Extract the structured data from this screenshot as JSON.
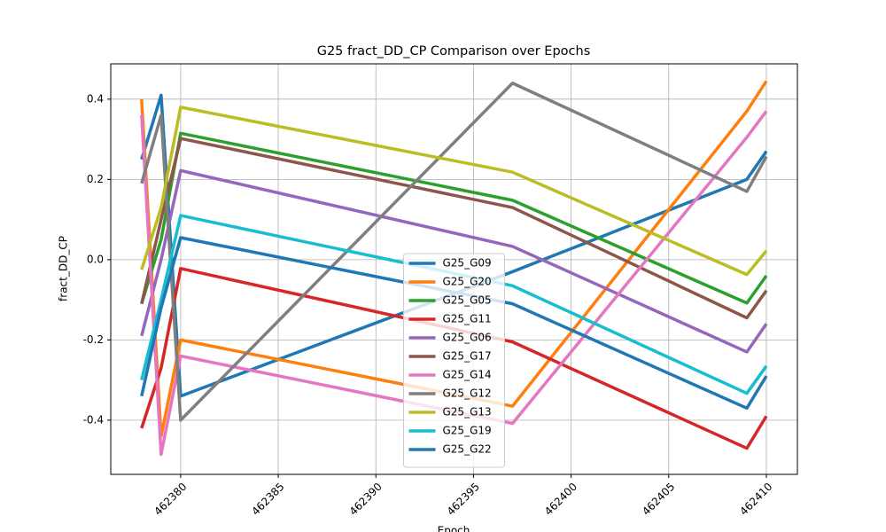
{
  "chart_data": {
    "type": "line",
    "title": "G25 fract_DD_CP Comparison over Epochs",
    "xlabel": "Epoch",
    "ylabel": "fract_DD_CP",
    "x": [
      462378,
      462379,
      462380,
      462397,
      462409,
      462410
    ],
    "series": [
      {
        "name": "G25_G09",
        "color": "#1f77b4",
        "values": [
          0.25,
          0.41,
          -0.34,
          -0.03,
          0.2,
          0.27
        ]
      },
      {
        "name": "G25_G20",
        "color": "#ff7f0e",
        "values": [
          0.4,
          -0.44,
          -0.2,
          -0.365,
          0.37,
          0.445
        ]
      },
      {
        "name": "G25_G05",
        "color": "#2ca02c",
        "values": [
          -0.11,
          0.05,
          0.315,
          0.148,
          -0.108,
          -0.04
        ]
      },
      {
        "name": "G25_G11",
        "color": "#d62728",
        "values": [
          -0.42,
          -0.27,
          -0.022,
          -0.205,
          -0.47,
          -0.39
        ]
      },
      {
        "name": "G25_G06",
        "color": "#9467bd",
        "values": [
          -0.19,
          0.0,
          0.222,
          0.033,
          -0.23,
          -0.16
        ]
      },
      {
        "name": "G25_G17",
        "color": "#8c564b",
        "values": [
          -0.11,
          0.1,
          0.302,
          0.13,
          -0.145,
          -0.077
        ]
      },
      {
        "name": "G25_G14",
        "color": "#e377c2",
        "values": [
          0.36,
          -0.485,
          -0.24,
          -0.408,
          0.305,
          0.37
        ]
      },
      {
        "name": "G25_G12",
        "color": "#7f7f7f",
        "values": [
          0.19,
          0.36,
          -0.4,
          0.44,
          0.17,
          0.257
        ]
      },
      {
        "name": "G25_G13",
        "color": "#bcbd22",
        "values": [
          -0.025,
          0.13,
          0.38,
          0.218,
          -0.037,
          0.022
        ]
      },
      {
        "name": "G25_G19",
        "color": "#17becf",
        "values": [
          -0.3,
          -0.1,
          0.11,
          -0.065,
          -0.333,
          -0.265
        ]
      },
      {
        "name": "G25_G22",
        "color": "#1f77b4",
        "values": [
          -0.34,
          -0.12,
          0.055,
          -0.11,
          -0.37,
          -0.29
        ]
      }
    ],
    "xlim": [
      462376.42,
      462411.59
    ],
    "xticks": [
      462380,
      462385,
      462390,
      462395,
      462400,
      462405,
      462410
    ],
    "ylim": [
      -0.535,
      0.488
    ],
    "yticks": [
      -0.4,
      -0.2,
      {
        "value": 0,
        "label": "0.0"
      },
      0.2,
      0.4
    ],
    "grid": true,
    "legend": "lower center"
  }
}
